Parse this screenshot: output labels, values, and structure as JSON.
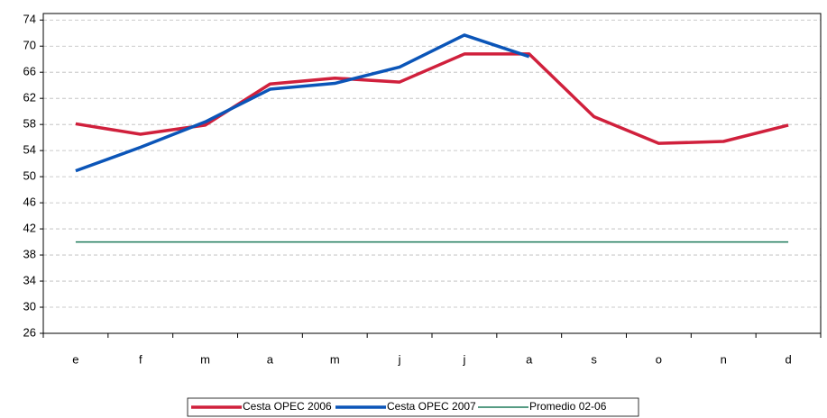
{
  "chart_data": {
    "type": "line",
    "categories": [
      "e",
      "f",
      "m",
      "a",
      "m",
      "j",
      "j",
      "a",
      "s",
      "o",
      "n",
      "d"
    ],
    "series": [
      {
        "name": "Cesta OPEC 2006",
        "color": "#d0203c",
        "width": 3.5,
        "values": [
          58.1,
          56.5,
          57.9,
          64.2,
          65.1,
          64.5,
          68.8,
          68.8,
          59.2,
          55.1,
          55.4,
          57.9
        ]
      },
      {
        "name": "Cesta OPEC 2007",
        "color": "#0b55b8",
        "width": 3.5,
        "values": [
          50.9,
          54.5,
          58.4,
          63.4,
          64.3,
          66.8,
          71.7,
          68.4,
          null,
          null,
          null,
          null
        ]
      },
      {
        "name": "Promedio 02-06",
        "color": "#1e7a5a",
        "width": 1.5,
        "values": [
          40,
          40,
          40,
          40,
          40,
          40,
          40,
          40,
          40,
          40,
          40,
          40
        ]
      }
    ],
    "ylim": [
      26,
      75
    ],
    "yticks": [
      26,
      30,
      34,
      38,
      42,
      46,
      50,
      54,
      58,
      62,
      66,
      70,
      74
    ],
    "grid": true
  }
}
